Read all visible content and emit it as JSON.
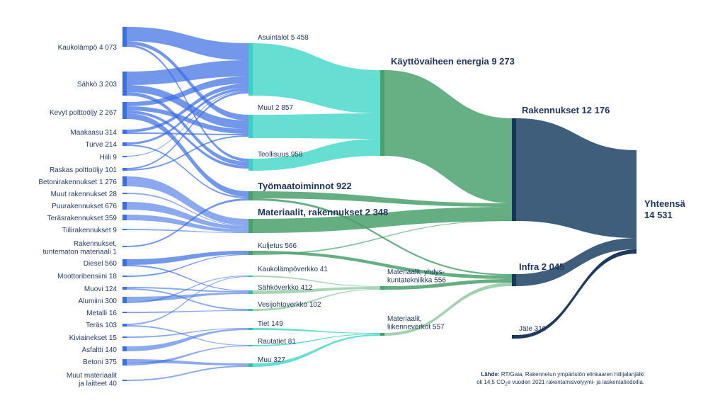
{
  "diagram": {
    "sources": [
      {
        "id": "kaukolampo",
        "label": "Kaukolämpö 4 073"
      },
      {
        "id": "sahko",
        "label": "Sähkö 3 203"
      },
      {
        "id": "kevyt",
        "label": "Kevyt polttoöljy 2 267"
      },
      {
        "id": "maakaasu",
        "label": "Maakaasu 314"
      },
      {
        "id": "turve",
        "label": "Turve 214"
      },
      {
        "id": "hiili",
        "label": "Hiili 9"
      },
      {
        "id": "raskas",
        "label": "Raskas polttoöljy 101"
      },
      {
        "id": "betonirak",
        "label": "Betonirakennukset 1 276"
      },
      {
        "id": "muutrak",
        "label": "Muut rakennukset 28"
      },
      {
        "id": "puurak",
        "label": "Puurakennukset 676"
      },
      {
        "id": "terasrak",
        "label": "Teräsrakennukset 359"
      },
      {
        "id": "tiilirak",
        "label": "Tiilirakennukset 9"
      },
      {
        "id": "tuntematon",
        "label": "Rakennukset,|tuntematon materiaali 1"
      },
      {
        "id": "diesel",
        "label": "Diesel 560"
      },
      {
        "id": "moottori",
        "label": "Moottoribensiini 18"
      },
      {
        "id": "muovi",
        "label": "Muovi 124"
      },
      {
        "id": "alumiini",
        "label": "Alumiini 300"
      },
      {
        "id": "metalli",
        "label": "Metalli 16"
      },
      {
        "id": "teras",
        "label": "Teräs 103"
      },
      {
        "id": "kiviaines",
        "label": "Kiviainekset 15"
      },
      {
        "id": "asfaltti",
        "label": "Asfaltti 140"
      },
      {
        "id": "betoni",
        "label": "Betoni 375"
      },
      {
        "id": "muutmat",
        "label": "Muut materiaalit|ja laitteet 40"
      }
    ],
    "intermediate": [
      {
        "id": "asuintalot",
        "label": "Asuintalot 5 458"
      },
      {
        "id": "muut",
        "label": "Muut 2 857"
      },
      {
        "id": "teollisuus",
        "label": "Teollisuus 958"
      },
      {
        "id": "tyomaa",
        "label": "Työmaatoiminnot 922"
      },
      {
        "id": "materiaalit",
        "label": "Materiaalit, rakennukset 2 348"
      },
      {
        "id": "kuljetus",
        "label": "Kuljetus 566"
      },
      {
        "id": "kaukoverkko",
        "label": "Kaukolämpöverkko 41"
      },
      {
        "id": "sahkoverkko",
        "label": "Sähköverkko 412"
      },
      {
        "id": "vesiverkko",
        "label": "Vesijohtoverkko 102"
      },
      {
        "id": "tiet",
        "label": "Tiet 149"
      },
      {
        "id": "rautatiet",
        "label": "Rautatiet 81"
      },
      {
        "id": "muu",
        "label": "Muu 327"
      }
    ],
    "aggregates": [
      {
        "id": "kayttovaihe",
        "label": "Käyttövaiheen energia 9 273"
      },
      {
        "id": "matyhd",
        "label": "Materiaalit, yhdys-|kuntatekniikka 556"
      },
      {
        "id": "matliik",
        "label": "Materiaalit,|liikenneverkot 557"
      }
    ],
    "sectors": [
      {
        "id": "rakennukset",
        "label": "Rakennukset 12 176"
      },
      {
        "id": "infra",
        "label": "Infra 2 045"
      },
      {
        "id": "jate",
        "label": "Jäte 310"
      }
    ],
    "total": {
      "label_line1": "Yhteensä",
      "label_line2": "14 531"
    },
    "colors": {
      "energy_source": "#3c6fe3",
      "energy_use": "#5fdcd0",
      "energy_total": "#5aa87a",
      "material": "#4aa06c",
      "sector": "#3f5e7c",
      "sector_node": "#17365c",
      "waste": "#1f3a5c",
      "infra_light": "#9ccfad"
    }
  },
  "note": {
    "bold": "Lähde:",
    "line1": " RT/Gaia, Rakennetun ympäristön elinkaaren hiilijalanjälki",
    "line2_a": "oli 14,5 CO",
    "line2_sub": "2",
    "line2_b": "e vuoden 2021 rakentamisvolyymi- ja laskentatiedoilla."
  }
}
